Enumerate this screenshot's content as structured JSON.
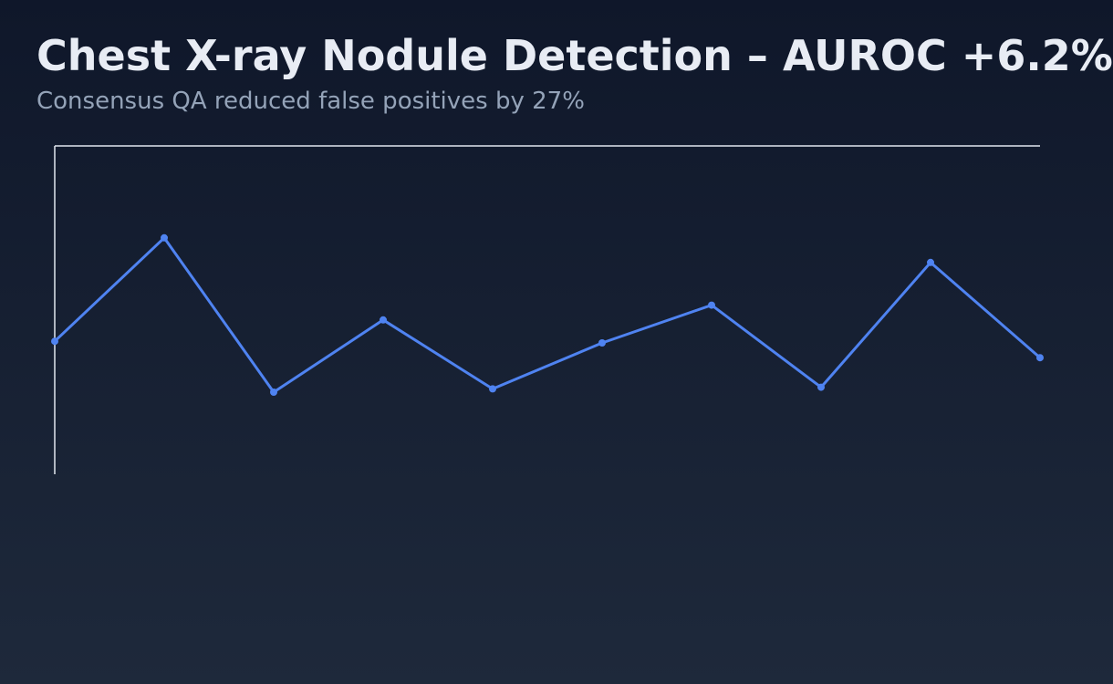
{
  "header": {
    "title": "Chest X-ray Nodule Detection – AUROC +6.2%",
    "subtitle": "Consensus QA reduced false positives by 27%"
  },
  "chart_data": {
    "type": "line",
    "title": "Chest X-ray Nodule Detection – AUROC +6.2%",
    "subtitle": "Consensus QA reduced false positives by 27%",
    "xlabel": "",
    "ylabel": "",
    "x": [
      1,
      2,
      3,
      4,
      5,
      6,
      7,
      8,
      9,
      10
    ],
    "series": [
      {
        "values": [
          0.405,
          0.72,
          0.25,
          0.47,
          0.26,
          0.4,
          0.515,
          0.265,
          0.645,
          0.355
        ]
      }
    ],
    "ylim": [
      0,
      1
    ],
    "grid": false,
    "legend": "none",
    "colors": {
      "line": "#4f83f1",
      "axis": "#e2e8f0"
    }
  }
}
